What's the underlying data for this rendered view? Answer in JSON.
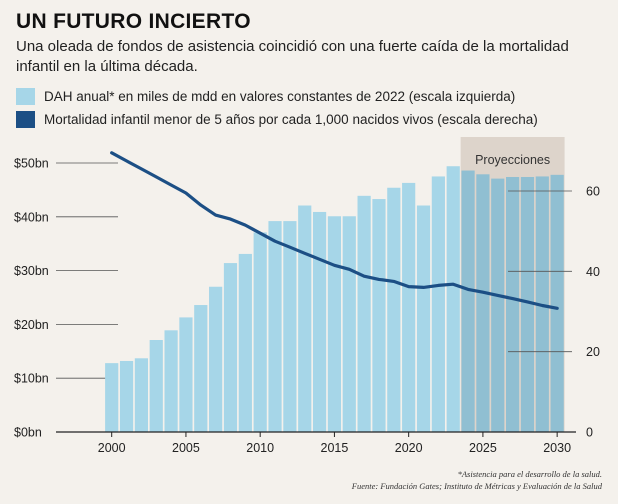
{
  "header": {
    "title": "UN FUTURO INCIERTO",
    "subtitle": "Una oleada de fondos de asistencia coincidió con una fuerte caída de la mortalidad infantil en la última década."
  },
  "legend": {
    "bars_label": "DAH anual* en miles de mdd en valores constantes de 2022 (escala izquierda)",
    "line_label": "Mortalidad infantil menor de 5 años por cada 1,000 nacidos vivos (escala derecha)"
  },
  "colors": {
    "bar": "#a6d6e8",
    "bar_projection": "#90bfd2",
    "line": "#1c4f85",
    "projection_band": "#ddd4cb",
    "background": "#f4f1ec"
  },
  "footnotes": {
    "note": "*Asistencia para el desarrollo de la salud.",
    "source": "Fuente: Fundación Gates; Instituto de Métricas y Evaluación de la Salud"
  },
  "chart_data": {
    "type": "bar",
    "projection_label": "Proyecciones",
    "projection_start_year": 2023.5,
    "projection_end_year": 2030.5,
    "x_ticks": [
      "2000",
      "2005",
      "2010",
      "2015",
      "2020",
      "2025",
      "2030"
    ],
    "xlim": [
      1998,
      2031
    ],
    "left_axis": {
      "ticks": [
        0,
        10,
        20,
        30,
        40,
        50
      ],
      "tick_labels": [
        "$0bn",
        "$10bn",
        "$20bn",
        "$30bn",
        "$40bn",
        "$50bn"
      ],
      "ylim": [
        0,
        51
      ]
    },
    "right_axis": {
      "ticks": [
        0,
        20,
        40,
        60
      ],
      "tick_labels": [
        "0",
        "20",
        "40",
        "60"
      ],
      "ylim": [
        0,
        68
      ]
    },
    "series": [
      {
        "name": "DAH anual* en miles de mdd en valores constantes de 2022 (escala izquierda)",
        "axis": "left",
        "type": "bar",
        "x": [
          2000,
          2001,
          2002,
          2003,
          2004,
          2005,
          2006,
          2007,
          2008,
          2009,
          2010,
          2011,
          2012,
          2013,
          2014,
          2015,
          2016,
          2017,
          2018,
          2019,
          2020,
          2021,
          2022,
          2023,
          2024,
          2025,
          2026,
          2027,
          2028,
          2029,
          2030
        ],
        "values": [
          12.8,
          13.2,
          13.7,
          17.1,
          18.9,
          21.3,
          23.6,
          27,
          31.4,
          33.1,
          37.1,
          39.2,
          39.2,
          42.1,
          40.9,
          40.1,
          40.1,
          43.9,
          43.3,
          45.4,
          46.3,
          42.1,
          47.5,
          49.4,
          48.6,
          47.9,
          47.1,
          47.4,
          47.4,
          47.5,
          47.8
        ]
      },
      {
        "name": "Mortalidad infantil menor de 5 años por cada 1,000 nacidos vivos (escala derecha)",
        "axis": "right",
        "type": "line",
        "x": [
          2000,
          2001,
          2002,
          2003,
          2004,
          2005,
          2006,
          2007,
          2008,
          2009,
          2010,
          2011,
          2012,
          2013,
          2014,
          2015,
          2016,
          2017,
          2018,
          2019,
          2020,
          2021,
          2022,
          2023,
          2024,
          2025,
          2026,
          2027,
          2028,
          2029,
          2030
        ],
        "values": [
          69.5,
          67.5,
          65.5,
          63.5,
          61.5,
          59.5,
          56.5,
          54,
          53,
          51.5,
          49.5,
          47.5,
          46,
          44.5,
          43,
          41.5,
          40.5,
          38.8,
          38,
          37.5,
          36.2,
          36,
          36.5,
          36.8,
          35.5,
          34.8,
          34,
          33.2,
          32.4,
          31.5,
          30.8
        ]
      }
    ]
  }
}
